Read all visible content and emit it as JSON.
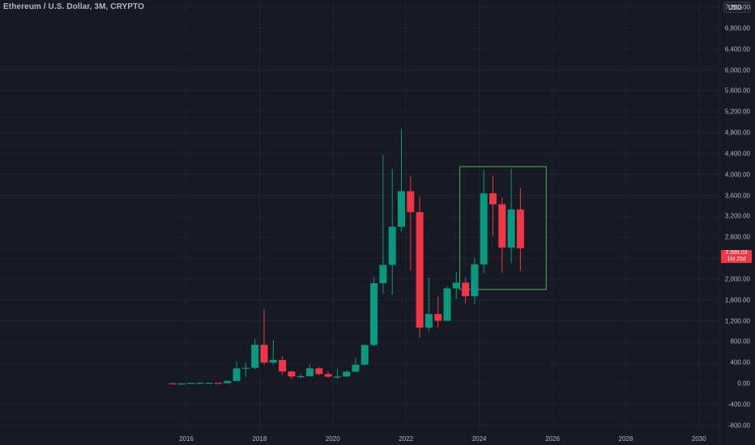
{
  "header": {
    "title": "Ethereum / U.S. Dollar, 3M, CRYPTO",
    "currency": "USD"
  },
  "last_price": {
    "value": "2,589.03",
    "countdown": "1M 20d",
    "color": "#f23645"
  },
  "colors": {
    "background": "#161a25",
    "grid": "#1f2330",
    "up": "#089981",
    "down": "#f23645",
    "text": "#b2b5be",
    "box": "#4caf50"
  },
  "y_axis": {
    "labels": [
      "7,200.00",
      "6,800.00",
      "6,400.00",
      "6,000.00",
      "5,600.00",
      "5,200.00",
      "4,800.00",
      "4,400.00",
      "4,000.00",
      "3,600.00",
      "3,200.00",
      "2,800.00",
      "2,400.00",
      "2,000.00",
      "1,600.00",
      "1,200.00",
      "800.00",
      "400.00",
      "0.00",
      "-400.00",
      "-800.00"
    ],
    "values": [
      7200,
      6800,
      6400,
      6000,
      5600,
      5200,
      4800,
      4400,
      4000,
      3600,
      3200,
      2800,
      2400,
      2000,
      1600,
      1200,
      800,
      400,
      0,
      -400,
      -800
    ]
  },
  "x_axis": {
    "labels": [
      "2016",
      "2018",
      "2020",
      "2022",
      "2024",
      "2026",
      "2028",
      "2030"
    ]
  },
  "annotation_box": {
    "from_date": "2023Q3",
    "to_date": "2025Q4",
    "price_top": 4150,
    "price_bottom": 1800
  },
  "chart_data": {
    "type": "candlestick",
    "title": "Ethereum / U.S. Dollar, 3M, CRYPTO",
    "xlabel": "",
    "ylabel": "USD",
    "ylim": [
      -900,
      7300
    ],
    "grid": true,
    "x_ticks": [
      "2016",
      "2018",
      "2020",
      "2022",
      "2024",
      "2026",
      "2028",
      "2030"
    ],
    "y_ticks": [
      7200,
      6800,
      6400,
      6000,
      5600,
      5200,
      4800,
      4400,
      4000,
      3600,
      3200,
      2800,
      2400,
      2000,
      1600,
      1200,
      800,
      400,
      0,
      -400,
      -800
    ],
    "candles": [
      {
        "period": "2015Q3",
        "open": 2.8,
        "high": 3,
        "low": 0.4,
        "close": 0.9
      },
      {
        "period": "2015Q4",
        "open": 0.9,
        "high": 1.3,
        "low": 0.4,
        "close": 0.9
      },
      {
        "period": "2016Q1",
        "open": 0.9,
        "high": 15,
        "low": 0.9,
        "close": 11
      },
      {
        "period": "2016Q2",
        "open": 11,
        "high": 21,
        "low": 7,
        "close": 12
      },
      {
        "period": "2016Q3",
        "open": 12,
        "high": 15,
        "low": 10,
        "close": 13
      },
      {
        "period": "2016Q4",
        "open": 13,
        "high": 14,
        "low": 6,
        "close": 8
      },
      {
        "period": "2017Q1",
        "open": 8,
        "high": 55,
        "low": 7,
        "close": 50
      },
      {
        "period": "2017Q2",
        "open": 50,
        "high": 420,
        "low": 48,
        "close": 290
      },
      {
        "period": "2017Q3",
        "open": 290,
        "high": 400,
        "low": 130,
        "close": 300
      },
      {
        "period": "2017Q4",
        "open": 300,
        "high": 860,
        "low": 280,
        "close": 740
      },
      {
        "period": "2018Q1",
        "open": 740,
        "high": 1420,
        "low": 360,
        "close": 400
      },
      {
        "period": "2018Q2",
        "open": 400,
        "high": 830,
        "low": 360,
        "close": 450
      },
      {
        "period": "2018Q3",
        "open": 450,
        "high": 520,
        "low": 170,
        "close": 230
      },
      {
        "period": "2018Q4",
        "open": 230,
        "high": 240,
        "low": 82,
        "close": 135
      },
      {
        "period": "2019Q1",
        "open": 135,
        "high": 180,
        "low": 100,
        "close": 140
      },
      {
        "period": "2019Q2",
        "open": 140,
        "high": 365,
        "low": 135,
        "close": 290
      },
      {
        "period": "2019Q3",
        "open": 290,
        "high": 320,
        "low": 160,
        "close": 180
      },
      {
        "period": "2019Q4",
        "open": 180,
        "high": 235,
        "low": 117,
        "close": 130
      },
      {
        "period": "2020Q1",
        "open": 130,
        "high": 290,
        "low": 90,
        "close": 133
      },
      {
        "period": "2020Q2",
        "open": 133,
        "high": 250,
        "low": 130,
        "close": 226
      },
      {
        "period": "2020Q3",
        "open": 226,
        "high": 490,
        "low": 220,
        "close": 360
      },
      {
        "period": "2020Q4",
        "open": 360,
        "high": 750,
        "low": 350,
        "close": 737
      },
      {
        "period": "2021Q1",
        "open": 737,
        "high": 2040,
        "low": 715,
        "close": 1920
      },
      {
        "period": "2021Q2",
        "open": 1920,
        "high": 4380,
        "low": 1720,
        "close": 2270
      },
      {
        "period": "2021Q3",
        "open": 2270,
        "high": 4100,
        "low": 1700,
        "close": 3000
      },
      {
        "period": "2021Q4",
        "open": 3000,
        "high": 4870,
        "low": 2900,
        "close": 3680
      },
      {
        "period": "2022Q1",
        "open": 3680,
        "high": 3960,
        "low": 2160,
        "close": 3280
      },
      {
        "period": "2022Q2",
        "open": 3280,
        "high": 3580,
        "low": 880,
        "close": 1070
      },
      {
        "period": "2022Q3",
        "open": 1070,
        "high": 2030,
        "low": 1000,
        "close": 1330
      },
      {
        "period": "2022Q4",
        "open": 1330,
        "high": 1670,
        "low": 1070,
        "close": 1200
      },
      {
        "period": "2023Q1",
        "open": 1200,
        "high": 1850,
        "low": 1200,
        "close": 1820
      },
      {
        "period": "2023Q2",
        "open": 1820,
        "high": 2140,
        "low": 1620,
        "close": 1930
      },
      {
        "period": "2023Q3",
        "open": 1930,
        "high": 2030,
        "low": 1530,
        "close": 1670
      },
      {
        "period": "2023Q4",
        "open": 1670,
        "high": 2410,
        "low": 1520,
        "close": 2280
      },
      {
        "period": "2024Q1",
        "open": 2280,
        "high": 4090,
        "low": 2110,
        "close": 3640
      },
      {
        "period": "2024Q2",
        "open": 3640,
        "high": 3980,
        "low": 2820,
        "close": 3430
      },
      {
        "period": "2024Q3",
        "open": 3430,
        "high": 3560,
        "low": 2120,
        "close": 2600
      },
      {
        "period": "2024Q4",
        "open": 2600,
        "high": 4110,
        "low": 2310,
        "close": 3330
      },
      {
        "period": "2025Q1",
        "open": 3330,
        "high": 3740,
        "low": 2150,
        "close": 2589.03
      }
    ]
  }
}
